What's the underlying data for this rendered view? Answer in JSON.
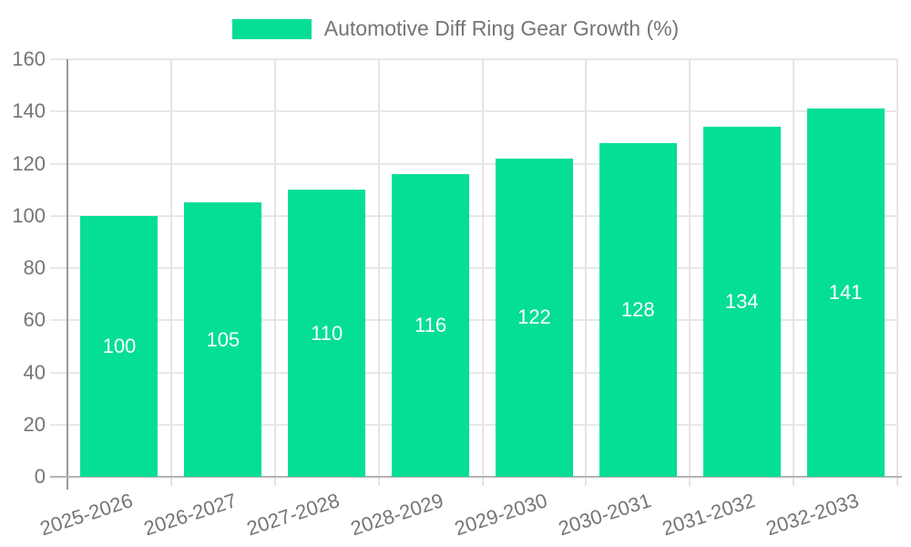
{
  "colors": {
    "bar": "#04DE96",
    "axis_text": "#757575",
    "value_label": "#ffffff",
    "grid": "#e7e7e7",
    "y_axis_line": "#999999",
    "x_axis_line": "#b5b5b5"
  },
  "chart_data": {
    "type": "bar",
    "title": "Automotive Diff Ring Gear Growth (%)",
    "categories": [
      "2025-2026",
      "2026-2027",
      "2027-2028",
      "2028-2029",
      "2029-2030",
      "2030-2031",
      "2031-2032",
      "2032-2033"
    ],
    "values": [
      100,
      105,
      110,
      116,
      122,
      128,
      134,
      141
    ],
    "xlabel": "",
    "ylabel": "",
    "ylim": [
      0,
      160
    ],
    "yticks": [
      0,
      20,
      40,
      60,
      80,
      100,
      120,
      140,
      160
    ],
    "grid": true,
    "legend_position": "top",
    "bar_labels_inside": true
  }
}
